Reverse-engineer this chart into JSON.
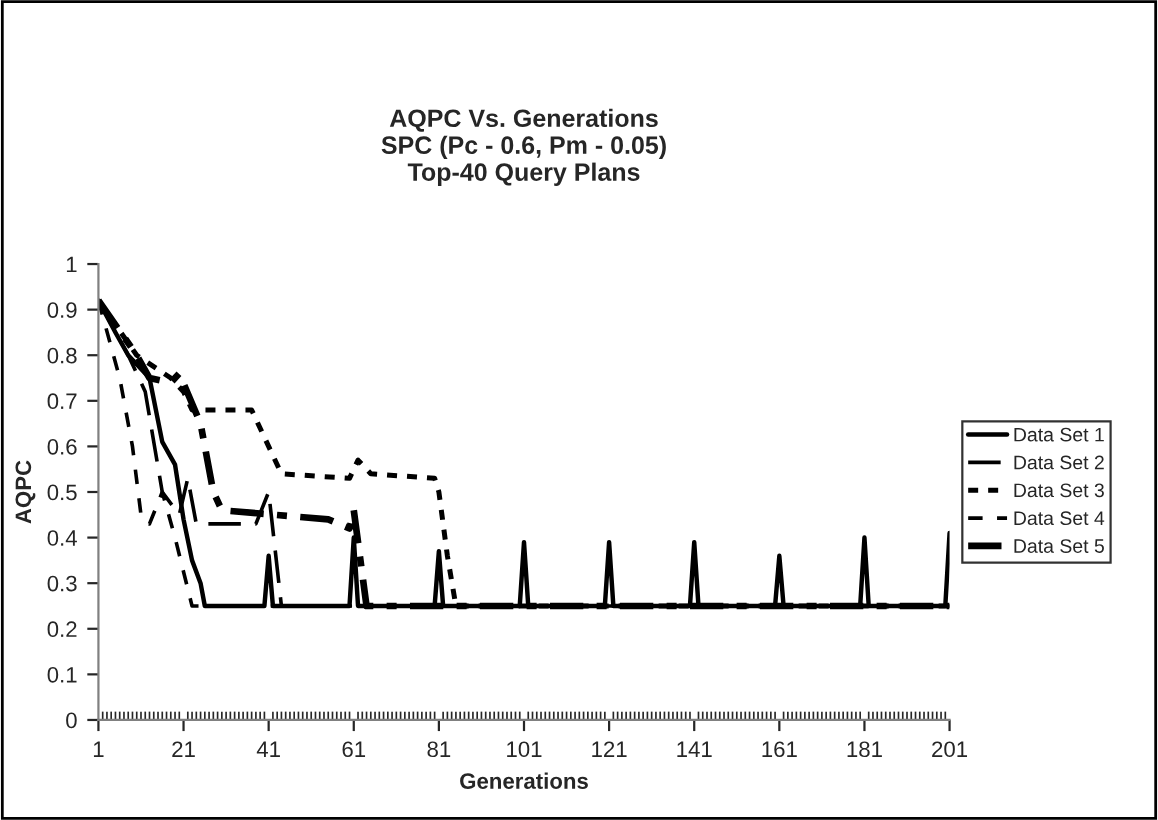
{
  "chart_data": {
    "type": "line",
    "title": "AQPC Vs. Generations\nSPC (Pc - 0.6, Pm - 0.05)\nTop-40 Query Plans",
    "xlabel": "Generations",
    "ylabel": "AQPC",
    "xlim": [
      1,
      201
    ],
    "xticks": [
      1,
      21,
      41,
      61,
      81,
      101,
      121,
      141,
      161,
      181,
      201
    ],
    "ylim": [
      0,
      1
    ],
    "yticks": [
      0,
      0.1,
      0.2,
      0.3,
      0.4,
      0.5,
      0.6,
      0.7,
      0.8,
      0.9,
      1
    ],
    "grid": false,
    "legend": "right",
    "marker": "none",
    "series": [
      {
        "name": "Data Set 1",
        "color": "#000000",
        "line_style": "solid",
        "x": [
          1,
          5,
          8,
          13,
          16,
          19,
          21,
          23,
          25,
          26,
          40,
          41,
          42,
          60,
          61,
          62,
          80,
          81,
          82,
          100,
          101,
          102,
          120,
          121,
          122,
          140,
          141,
          142,
          160,
          161,
          162,
          180,
          181,
          182,
          200,
          201
        ],
        "values": [
          0.92,
          0.85,
          0.8,
          0.75,
          0.61,
          0.56,
          0.44,
          0.35,
          0.3,
          0.25,
          0.25,
          0.36,
          0.25,
          0.25,
          0.4,
          0.25,
          0.25,
          0.37,
          0.25,
          0.25,
          0.39,
          0.25,
          0.25,
          0.39,
          0.25,
          0.25,
          0.39,
          0.25,
          0.25,
          0.36,
          0.25,
          0.25,
          0.4,
          0.25,
          0.25,
          0.41
        ]
      },
      {
        "name": "Data Set 2",
        "color": "#000000",
        "line_style": "dashed",
        "x": [
          1,
          8,
          12,
          16,
          20,
          22,
          24,
          38,
          41,
          44,
          201
        ],
        "values": [
          0.92,
          0.8,
          0.72,
          0.5,
          0.45,
          0.53,
          0.43,
          0.43,
          0.5,
          0.25,
          0.25
        ]
      },
      {
        "name": "Data Set 3",
        "color": "#000000",
        "line_style": "dotted",
        "x": [
          1,
          10,
          18,
          21,
          23,
          37,
          44,
          60,
          62,
          65,
          80,
          81,
          83,
          85,
          201
        ],
        "values": [
          0.92,
          0.8,
          0.75,
          0.72,
          0.68,
          0.68,
          0.54,
          0.53,
          0.57,
          0.54,
          0.53,
          0.5,
          0.36,
          0.25,
          0.25
        ]
      },
      {
        "name": "Data Set 4",
        "color": "#000000",
        "line_style": "dashed",
        "x": [
          1,
          6,
          9,
          11,
          13,
          16,
          19,
          23,
          201
        ],
        "values": [
          0.92,
          0.75,
          0.6,
          0.45,
          0.43,
          0.5,
          0.4,
          0.25,
          0.25
        ]
      },
      {
        "name": "Data Set 5",
        "color": "#000000",
        "line_style": "dotted",
        "x": [
          1,
          10,
          13,
          18,
          20,
          25,
          28,
          30,
          55,
          60,
          61,
          64,
          201
        ],
        "values": [
          0.92,
          0.8,
          0.75,
          0.74,
          0.76,
          0.65,
          0.5,
          0.46,
          0.44,
          0.42,
          0.46,
          0.25,
          0.25
        ]
      }
    ]
  }
}
